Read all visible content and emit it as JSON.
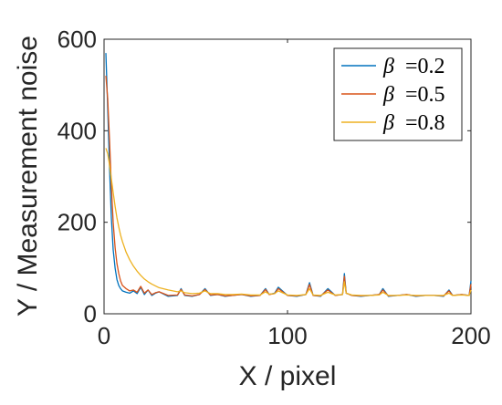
{
  "chart_data": {
    "type": "line",
    "xlabel": "X / pixel",
    "ylabel": "Y / Measurement noise",
    "xlim": [
      0,
      200
    ],
    "ylim": [
      0,
      600
    ],
    "xticks": [
      0,
      100,
      200
    ],
    "yticks": [
      0,
      200,
      400,
      600
    ],
    "grid": false,
    "legend_placement": "top-right",
    "series": [
      {
        "name": "β =0.2",
        "legend_symbol": "β",
        "legend_value": "=0.2",
        "color": "#0072BD",
        "x": [
          1,
          2,
          3,
          4,
          5,
          6,
          7,
          8,
          9,
          10,
          12,
          14,
          16,
          18,
          20,
          22,
          24,
          26,
          28,
          30,
          35,
          40,
          42,
          44,
          48,
          52,
          55,
          58,
          62,
          66,
          70,
          75,
          80,
          85,
          88,
          90,
          93,
          95,
          100,
          105,
          110,
          112,
          114,
          118,
          122,
          126,
          130,
          131,
          132,
          135,
          140,
          145,
          150,
          152,
          155,
          160,
          165,
          170,
          175,
          180,
          185,
          188,
          190,
          195,
          199,
          200
        ],
        "y": [
          570,
          450,
          320,
          210,
          140,
          100,
          75,
          62,
          55,
          50,
          47,
          45,
          50,
          44,
          58,
          42,
          52,
          40,
          45,
          48,
          38,
          40,
          55,
          40,
          38,
          42,
          55,
          40,
          42,
          38,
          40,
          42,
          38,
          40,
          55,
          42,
          45,
          58,
          40,
          38,
          42,
          68,
          40,
          38,
          55,
          40,
          42,
          88,
          45,
          40,
          38,
          40,
          42,
          55,
          38,
          40,
          42,
          38,
          40,
          40,
          38,
          52,
          40,
          42,
          40,
          72
        ]
      },
      {
        "name": "β =0.5",
        "legend_symbol": "β",
        "legend_value": "=0.5",
        "color": "#D95319",
        "x": [
          1,
          2,
          3,
          4,
          5,
          6,
          7,
          8,
          9,
          10,
          12,
          14,
          16,
          18,
          20,
          22,
          24,
          26,
          28,
          30,
          35,
          40,
          42,
          44,
          48,
          52,
          55,
          58,
          62,
          66,
          70,
          75,
          80,
          85,
          88,
          90,
          93,
          95,
          100,
          105,
          110,
          112,
          114,
          118,
          122,
          126,
          130,
          131,
          132,
          135,
          140,
          145,
          150,
          152,
          155,
          160,
          165,
          170,
          175,
          180,
          185,
          188,
          190,
          195,
          199,
          200
        ],
        "y": [
          520,
          470,
          380,
          280,
          200,
          145,
          110,
          88,
          72,
          62,
          55,
          50,
          52,
          47,
          60,
          45,
          52,
          42,
          46,
          48,
          40,
          41,
          53,
          41,
          39,
          42,
          53,
          41,
          42,
          39,
          40,
          42,
          39,
          40,
          53,
          42,
          44,
          55,
          40,
          39,
          42,
          64,
          40,
          39,
          52,
          40,
          42,
          82,
          45,
          40,
          39,
          40,
          42,
          52,
          39,
          40,
          42,
          39,
          40,
          40,
          39,
          50,
          40,
          42,
          40,
          65
        ]
      },
      {
        "name": "β =0.8",
        "legend_symbol": "β",
        "legend_value": "=0.8",
        "color": "#EDB120",
        "x": [
          1,
          2,
          3,
          4,
          5,
          6,
          7,
          8,
          9,
          10,
          12,
          14,
          16,
          18,
          20,
          22,
          24,
          26,
          28,
          30,
          35,
          40,
          42,
          44,
          48,
          52,
          55,
          58,
          62,
          66,
          70,
          75,
          80,
          85,
          88,
          90,
          93,
          95,
          100,
          105,
          110,
          112,
          114,
          118,
          122,
          126,
          130,
          131,
          132,
          135,
          140,
          145,
          150,
          152,
          155,
          160,
          165,
          170,
          175,
          180,
          185,
          188,
          190,
          195,
          199,
          200
        ],
        "y": [
          362,
          350,
          325,
          295,
          265,
          235,
          210,
          190,
          172,
          158,
          135,
          118,
          104,
          93,
          84,
          76,
          70,
          65,
          61,
          57,
          52,
          48,
          50,
          46,
          44,
          45,
          50,
          44,
          44,
          42,
          42,
          43,
          41,
          41,
          48,
          43,
          44,
          50,
          41,
          40,
          42,
          55,
          41,
          40,
          47,
          41,
          42,
          70,
          45,
          41,
          40,
          40,
          41,
          47,
          40,
          40,
          41,
          40,
          40,
          40,
          40,
          45,
          40,
          41,
          40,
          52
        ]
      }
    ]
  }
}
